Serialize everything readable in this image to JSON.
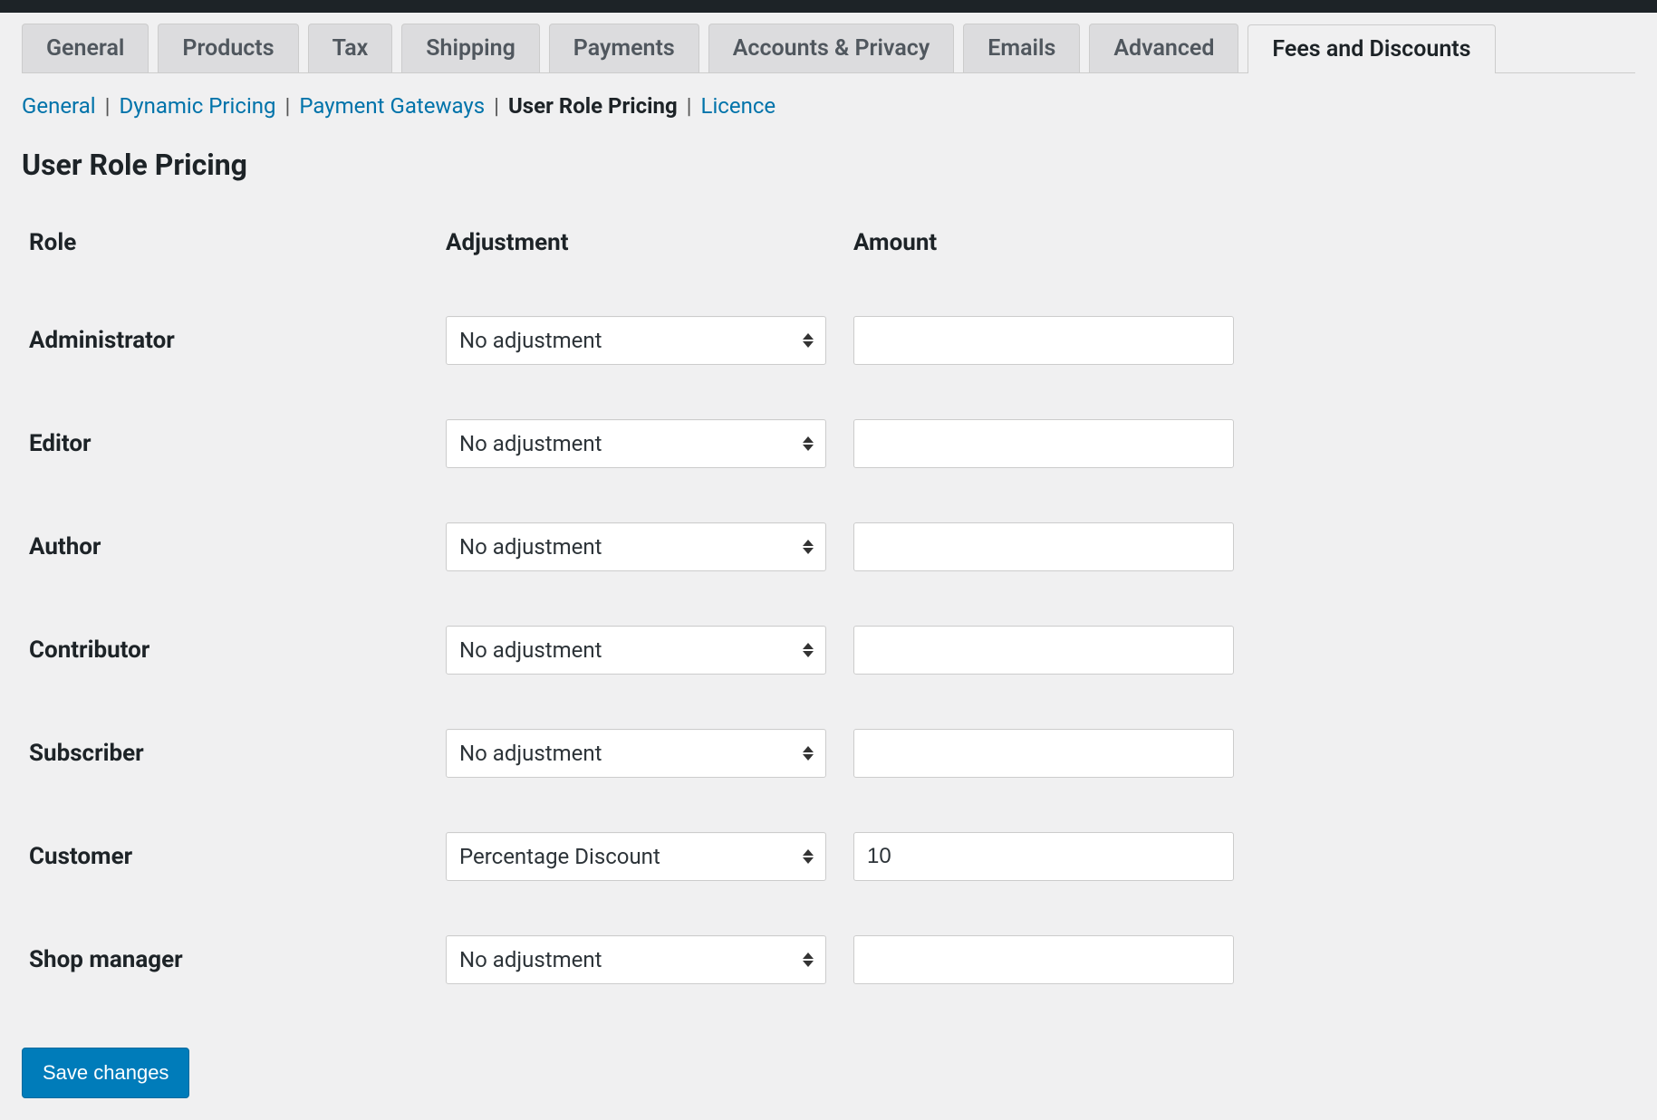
{
  "colors": {
    "page_bg": "#f0f0f1",
    "topbar_bg": "#1d2327",
    "tab_bg": "#dcdcde",
    "tab_border": "#cccccc",
    "tab_text": "#50575e",
    "tab_active_text": "#1d2327",
    "link": "#0073aa",
    "text": "#1d2327",
    "input_bg": "#ffffff",
    "input_border": "#cccccc",
    "button_bg": "#007cba",
    "button_text": "#ffffff"
  },
  "tabs": [
    {
      "label": "General",
      "active": false
    },
    {
      "label": "Products",
      "active": false
    },
    {
      "label": "Tax",
      "active": false
    },
    {
      "label": "Shipping",
      "active": false
    },
    {
      "label": "Payments",
      "active": false
    },
    {
      "label": "Accounts & Privacy",
      "active": false
    },
    {
      "label": "Emails",
      "active": false
    },
    {
      "label": "Advanced",
      "active": false
    },
    {
      "label": "Fees and Discounts",
      "active": true
    }
  ],
  "subnav": [
    {
      "label": "General",
      "current": false
    },
    {
      "label": "Dynamic Pricing",
      "current": false
    },
    {
      "label": "Payment Gateways",
      "current": false
    },
    {
      "label": "User Role Pricing",
      "current": true
    },
    {
      "label": "Licence",
      "current": false
    }
  ],
  "page_title": "User Role Pricing",
  "table": {
    "headers": {
      "role": "Role",
      "adjustment": "Adjustment",
      "amount": "Amount"
    },
    "rows": [
      {
        "role": "Administrator",
        "adjustment": "No adjustment",
        "amount": ""
      },
      {
        "role": "Editor",
        "adjustment": "No adjustment",
        "amount": ""
      },
      {
        "role": "Author",
        "adjustment": "No adjustment",
        "amount": ""
      },
      {
        "role": "Contributor",
        "adjustment": "No adjustment",
        "amount": ""
      },
      {
        "role": "Subscriber",
        "adjustment": "No adjustment",
        "amount": ""
      },
      {
        "role": "Customer",
        "adjustment": "Percentage Discount",
        "amount": "10"
      },
      {
        "role": "Shop manager",
        "adjustment": "No adjustment",
        "amount": ""
      }
    ]
  },
  "save_button": "Save changes"
}
